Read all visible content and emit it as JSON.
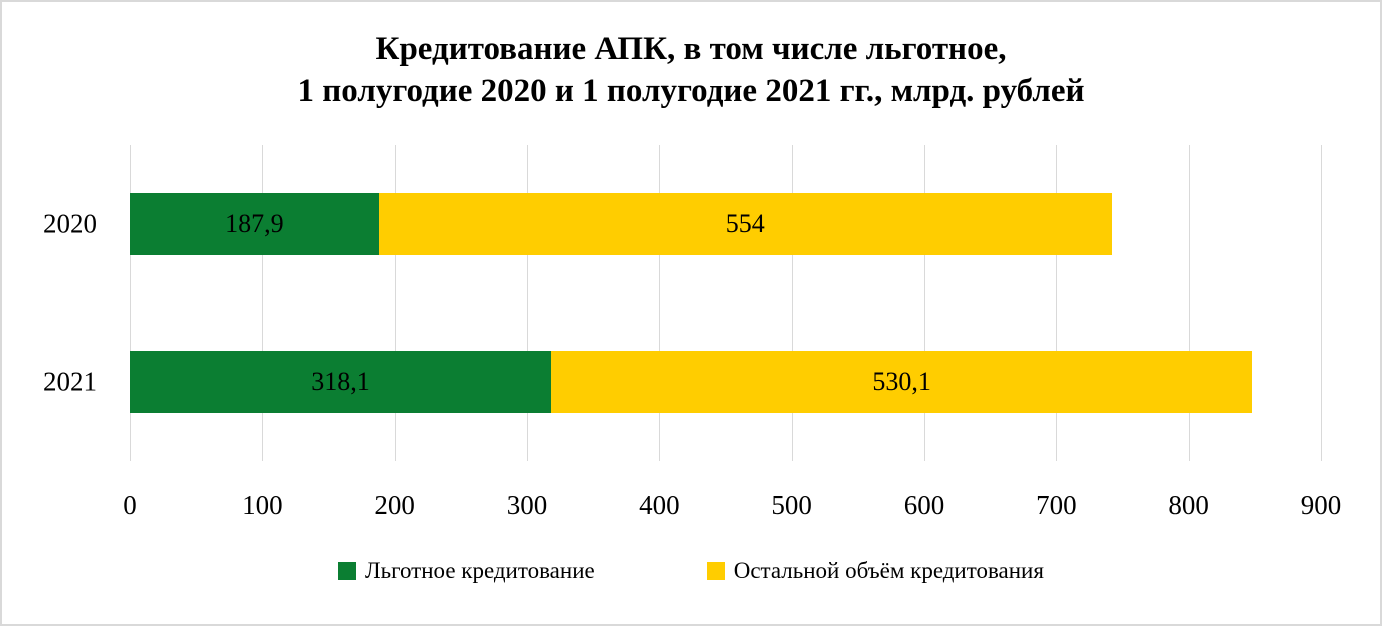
{
  "chart_data": {
    "type": "bar",
    "orientation": "horizontal",
    "stacked": true,
    "title_lines": [
      "Кредитование АПК, в том числе льготное,",
      "1 полугодие 2020 и 1 полугодие 2021 гг., млрд. рублей"
    ],
    "categories": [
      "2020",
      "2021"
    ],
    "series": [
      {
        "name": "Льготное кредитование",
        "color": "#0b7e32",
        "values": [
          187.9,
          318.1
        ],
        "value_labels": [
          "187,9",
          "318,1"
        ]
      },
      {
        "name": "Остальной объём кредитования",
        "color": "#ffcd00",
        "values": [
          554,
          530.1
        ],
        "value_labels": [
          "554",
          "530,1"
        ]
      }
    ],
    "x_axis": {
      "min": 0,
      "max": 900,
      "tick_step": 100,
      "tick_labels": [
        "0",
        "100",
        "200",
        "300",
        "400",
        "500",
        "600",
        "700",
        "800",
        "900"
      ]
    },
    "grid": true,
    "gridline_color": "#d9d9d9",
    "legend_position": "bottom"
  },
  "frame": {
    "border_color": "#d9d9d9",
    "background_color": "#ffffff"
  }
}
